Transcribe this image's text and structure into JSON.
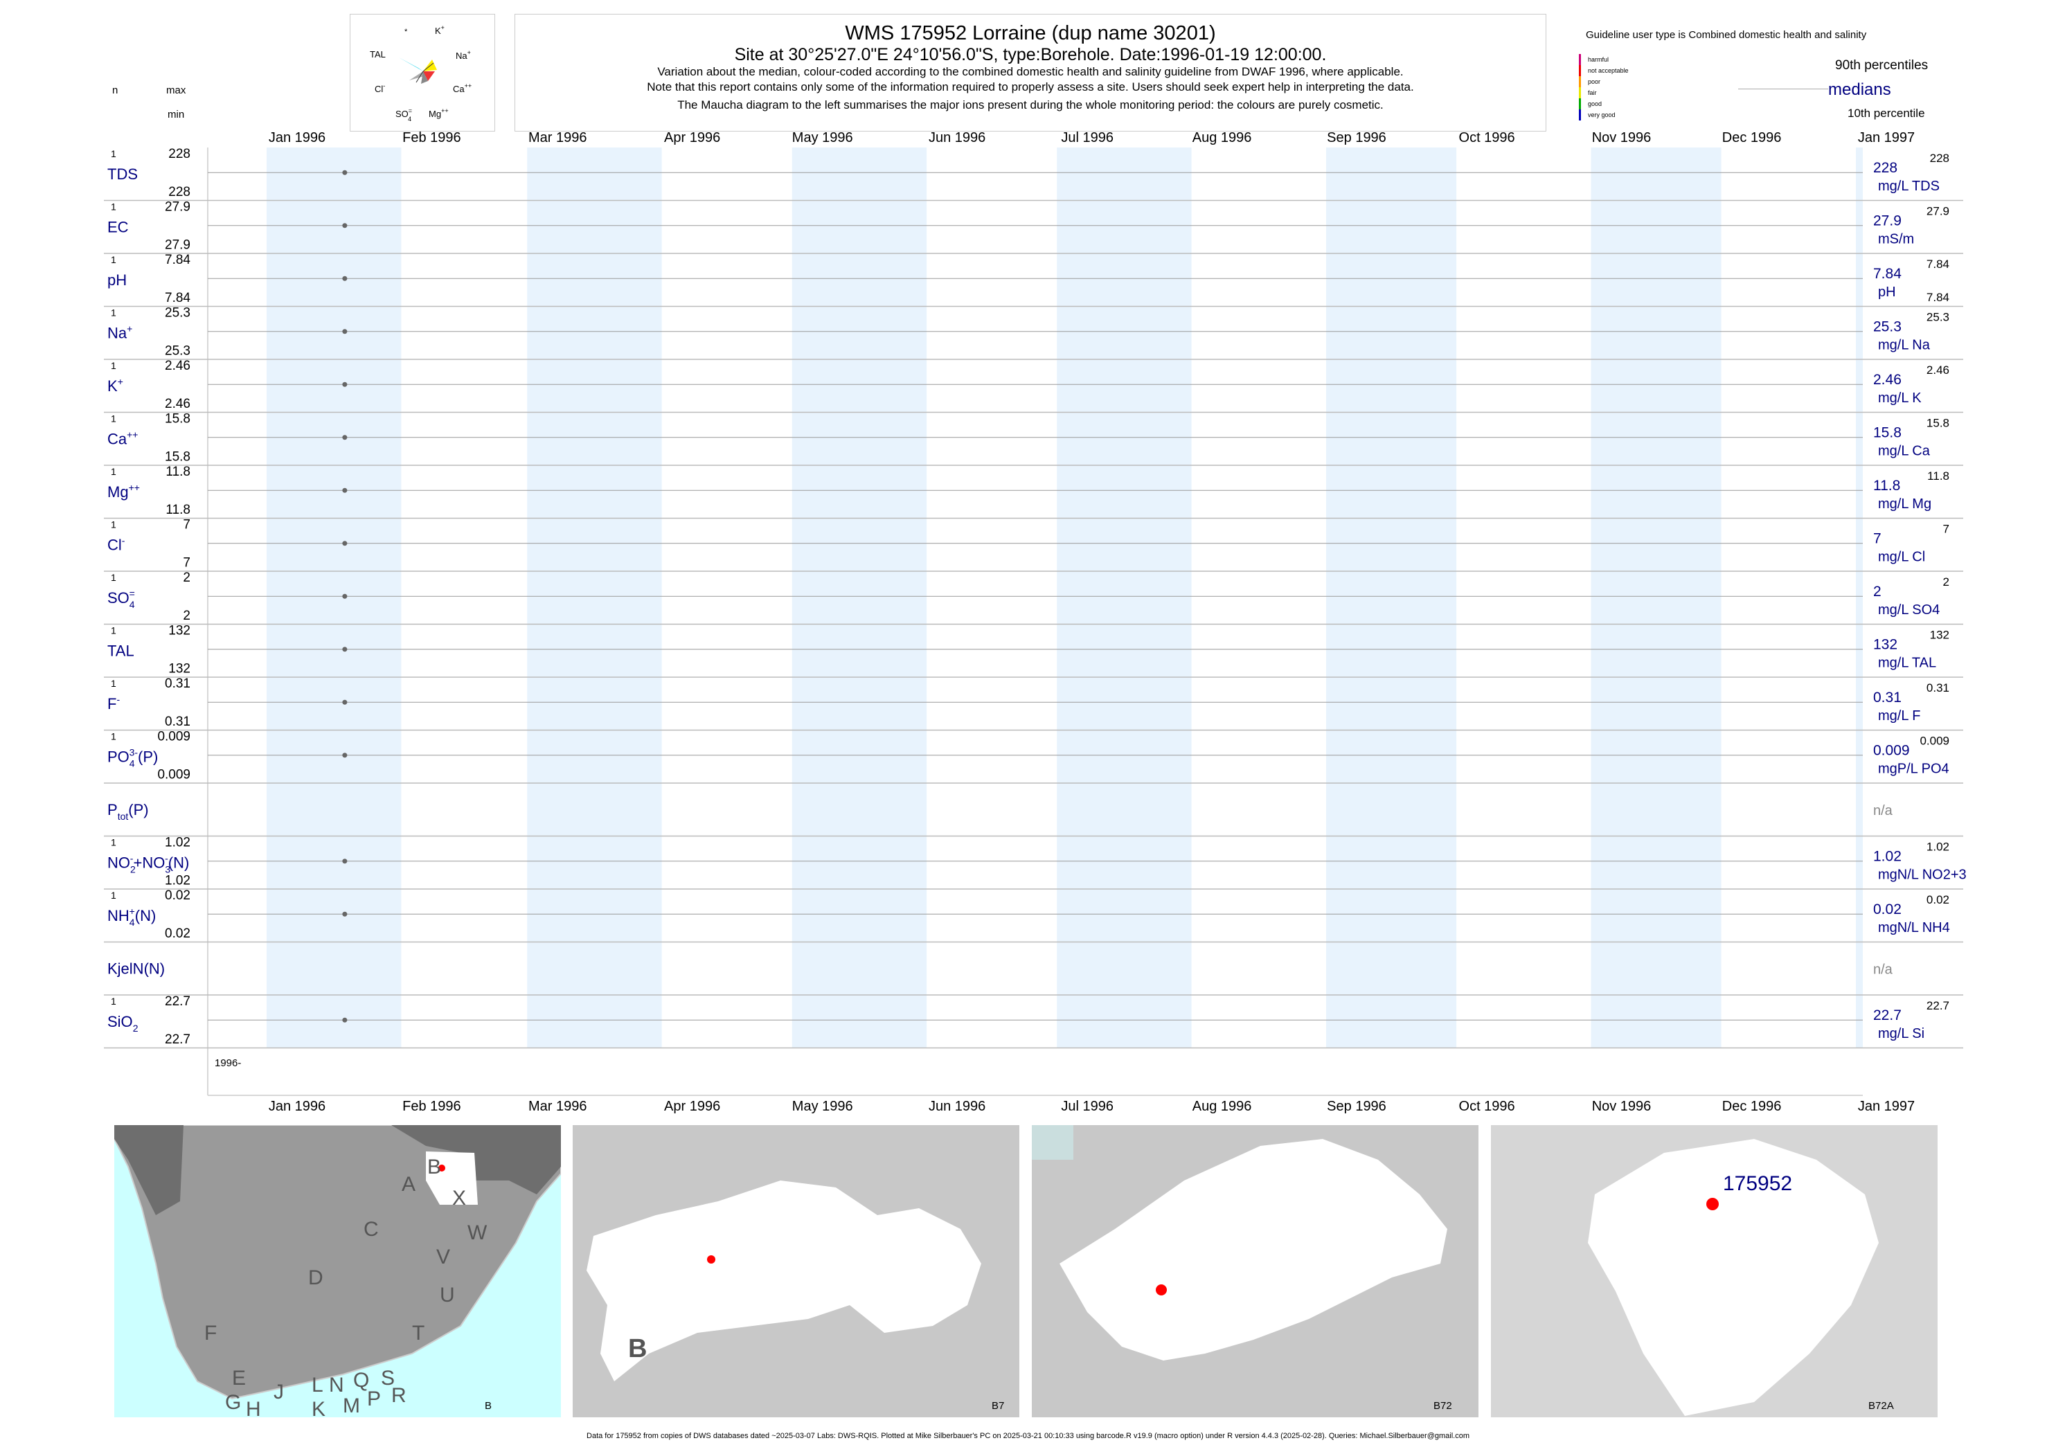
{
  "header": {
    "title": "WMS 175952  Lorraine (dup name 30201)",
    "subtitle": "Site at 30°25'27.0\"E 24°10'56.0\"S, type:Borehole. Date:1996-01-19 12:00:00.",
    "note1": "Variation about the median,  colour-coded according to the combined domestic health and salinity guideline from DWAF 1996, where applicable.",
    "note2": "Note that this report contains only some of the information required to properly assess a site. Users should seek expert help in interpreting the data.",
    "note3": "The Maucha diagram to the left summarises the major ions present during the whole monitoring period: the colours are purely cosmetic."
  },
  "maucha": {
    "labels": {
      "star": "*",
      "k": "K",
      "k_sup": "+",
      "tal": "TAL",
      "na": "Na",
      "na_sup": "+",
      "cl": "Cl",
      "cl_sup": "-",
      "ca": "Ca",
      "ca_sup": "++",
      "so4": "SO",
      "so4_sub": "4",
      "so4_sup": "=",
      "mg": "Mg",
      "mg_sup": "++"
    }
  },
  "legend": {
    "guideline_title": "Guideline user type is Combined domestic health and salinity",
    "classes": [
      {
        "label": "harmful",
        "color": "#cc0077"
      },
      {
        "label": "not acceptable",
        "color": "#ee0000"
      },
      {
        "label": "poor",
        "color": "#ff9900"
      },
      {
        "label": "fair",
        "color": "#e8e800"
      },
      {
        "label": "good",
        "color": "#00aa00"
      },
      {
        "label": "very good",
        "color": "#0000bb"
      }
    ],
    "p90": "90th percentiles",
    "medians": "medians",
    "p10": "10th percentile"
  },
  "column_heads": {
    "n": "n",
    "max": "max",
    "min": "min"
  },
  "chart_data": {
    "type": "scatter",
    "x_axis": {
      "ticks": [
        "Jan 1996",
        "Feb 1996",
        "Mar 1996",
        "Apr 1996",
        "May 1996",
        "Jun 1996",
        "Jul 1996",
        "Aug 1996",
        "Sep 1996",
        "Oct 1996",
        "Nov 1996",
        "Dec 1996",
        "Jan 1997"
      ],
      "range": [
        "1996-01-01",
        "1997-01-01"
      ],
      "year_label": "1996-"
    },
    "sample_date": "1996-01-19",
    "panels": [
      {
        "label": "TDS",
        "sup": "",
        "sub": "",
        "n": "1",
        "max": "228",
        "min": "228",
        "median": "228",
        "p90": "228",
        "p10": "",
        "unit": "mg/L TDS",
        "value": 228
      },
      {
        "label": "EC",
        "sup": "",
        "sub": "",
        "n": "1",
        "max": "27.9",
        "min": "27.9",
        "median": "27.9",
        "p90": "27.9",
        "p10": "",
        "unit": "mS/m",
        "value": 27.9
      },
      {
        "label": "pH",
        "sup": "",
        "sub": "",
        "n": "1",
        "max": "7.84",
        "min": "7.84",
        "median": "7.84",
        "p90": "7.84",
        "p10": "7.84",
        "unit": "pH",
        "value": 7.84
      },
      {
        "label": "Na",
        "sup": "+",
        "sub": "",
        "n": "1",
        "max": "25.3",
        "min": "25.3",
        "median": "25.3",
        "p90": "25.3",
        "p10": "",
        "unit": "mg/L Na",
        "value": 25.3
      },
      {
        "label": "K",
        "sup": "+",
        "sub": "",
        "n": "1",
        "max": "2.46",
        "min": "2.46",
        "median": "2.46",
        "p90": "2.46",
        "p10": "",
        "unit": "mg/L K",
        "value": 2.46
      },
      {
        "label": "Ca",
        "sup": "++",
        "sub": "",
        "n": "1",
        "max": "15.8",
        "min": "15.8",
        "median": "15.8",
        "p90": "15.8",
        "p10": "",
        "unit": "mg/L Ca",
        "value": 15.8
      },
      {
        "label": "Mg",
        "sup": "++",
        "sub": "",
        "n": "1",
        "max": "11.8",
        "min": "11.8",
        "median": "11.8",
        "p90": "11.8",
        "p10": "",
        "unit": "mg/L Mg",
        "value": 11.8
      },
      {
        "label": "Cl",
        "sup": "-",
        "sub": "",
        "n": "1",
        "max": "7",
        "min": "7",
        "median": "7",
        "p90": "7",
        "p10": "",
        "unit": "mg/L Cl",
        "value": 7
      },
      {
        "label": "SO",
        "sup": "=",
        "sub": "4",
        "n": "1",
        "max": "2",
        "min": "2",
        "median": "2",
        "p90": "2",
        "p10": "",
        "unit": "mg/L SO4",
        "value": 2
      },
      {
        "label": "TAL",
        "sup": "",
        "sub": "",
        "n": "1",
        "max": "132",
        "min": "132",
        "median": "132",
        "p90": "132",
        "p10": "",
        "unit": "mg/L TAL",
        "value": 132
      },
      {
        "label": "F",
        "sup": "-",
        "sub": "",
        "n": "1",
        "max": "0.31",
        "min": "0.31",
        "median": "0.31",
        "p90": "0.31",
        "p10": "",
        "unit": "mg/L F",
        "value": 0.31
      },
      {
        "label": "PO",
        "sup": "3-",
        "sub": "4",
        "suffix": "(P)",
        "n": "1",
        "max": "0.009",
        "min": "0.009",
        "median": "0.009",
        "p90": "0.009",
        "p10": "",
        "unit": "mgP/L PO4",
        "value": 0.009
      },
      {
        "label": "P",
        "sup": "",
        "sub": "tot",
        "suffix": "(P)",
        "n": "",
        "max": "",
        "min": "",
        "median": "n/a",
        "p90": "",
        "p10": "",
        "unit": "",
        "value": null
      },
      {
        "label": "NO",
        "sup": "-",
        "sub": "2",
        "suffix": "+NO",
        "sup2": "-",
        "sub2": "3",
        "suffix2": "(N)",
        "n": "1",
        "max": "1.02",
        "min": "1.02",
        "median": "1.02",
        "p90": "1.02",
        "p10": "",
        "unit": "mgN/L NO2+3",
        "value": 1.02
      },
      {
        "label": "NH",
        "sup": "+",
        "sub": "4",
        "suffix": "(N)",
        "n": "1",
        "max": "0.02",
        "min": "0.02",
        "median": "0.02",
        "p90": "0.02",
        "p10": "",
        "unit": "mgN/L NH4",
        "value": 0.02
      },
      {
        "label": "KjelN(N)",
        "sup": "",
        "sub": "",
        "n": "",
        "max": "",
        "min": "",
        "median": "n/a",
        "p90": "",
        "p10": "",
        "unit": "",
        "value": null
      },
      {
        "label": "SiO",
        "sup": "",
        "sub": "2",
        "n": "1",
        "max": "22.7",
        "min": "22.7",
        "median": "22.7",
        "p90": "22.7",
        "p10": "",
        "unit": "mg/L Si",
        "value": 22.7
      }
    ]
  },
  "maps": {
    "panel1_label": "B",
    "panel1_regions": [
      "A",
      "B",
      "X",
      "W",
      "C",
      "V",
      "U",
      "D",
      "T",
      "F",
      "E",
      "J",
      "L",
      "N",
      "Q",
      "S",
      "G",
      "H",
      "K",
      "M",
      "P",
      "R"
    ],
    "panel2_label": "B7",
    "panel2_big": "B",
    "panel3_label": "B72",
    "panel4_label": "B72A",
    "site_id": "175952",
    "site_color": "#ff0000",
    "water_color": "#ccffff"
  },
  "footer": "Data for 175952 from copies of DWS databases dated ~2025-03-07 Labs: DWS-RQIS. Plotted at Mike Silberbauer's PC on 2025-03-21 00:10:33 using barcode.R v19.9 (macro option) under R version 4.4.3 (2025-02-28). Queries: Michael.Silberbauer@gmail.com"
}
